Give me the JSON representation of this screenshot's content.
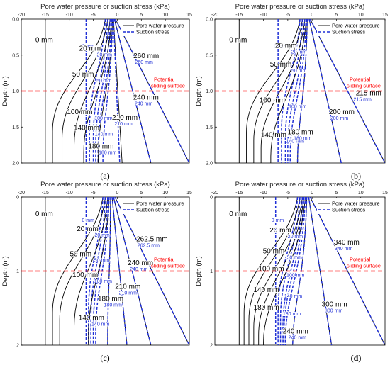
{
  "chart_data": [
    {
      "panel_label": "(a)",
      "type": "line",
      "title": "Pore water pressure or suction stress (kPa)",
      "xlabel": "Pore water pressure or suction stress (kPa)",
      "ylabel": "Depth (m)",
      "xlim": [
        -20,
        15
      ],
      "ylim": [
        0,
        2
      ],
      "xticks": [
        "-20",
        "-15",
        "-10",
        "-5",
        "0",
        "5",
        "10",
        "15"
      ],
      "yticks": [
        "0.0",
        "0.5",
        "1.0",
        "1.5",
        "2.0"
      ],
      "legend": [
        "Pore water pressure",
        "Suction stress"
      ],
      "legend_position": "top-right",
      "sliding_surface_depth": 1.0,
      "sliding_surface_label": "Potential sliding surface",
      "series": [
        {
          "pwp_label": "0 mm",
          "suc_label": "0 mm",
          "pwp_x": [
            -15,
            -15
          ],
          "suc_x": [
            -6.5,
            -6.5
          ]
        },
        {
          "pwp_label": "20 mm",
          "suc_label": "20 mm",
          "pwp_x": [
            -2.5,
            -13.5
          ],
          "suc_x": [
            -2.5,
            -5.8
          ]
        },
        {
          "pwp_label": "50 mm",
          "suc_label": "50 mm",
          "pwp_x": [
            -2,
            -11.5
          ],
          "suc_x": [
            -2,
            -5
          ]
        },
        {
          "pwp_label": "100 mm",
          "suc_label": "100 mm",
          "pwp_x": [
            -1.5,
            -9
          ],
          "suc_x": [
            -1.5,
            -4.5
          ]
        },
        {
          "pwp_label": "140 mm",
          "suc_label": "140 mm",
          "pwp_x": [
            -1.2,
            -7
          ],
          "suc_x": [
            -1.2,
            -4
          ]
        },
        {
          "pwp_label": "180 mm",
          "suc_label": "180 mm",
          "pwp_x": [
            -1,
            -4
          ],
          "suc_x": [
            -1,
            -3
          ]
        },
        {
          "pwp_label": "210 mm",
          "suc_label": "210 mm",
          "pwp_x": [
            -0.8,
            1
          ],
          "suc_x": [
            -0.8,
            0.5
          ]
        },
        {
          "pwp_label": "240 mm",
          "suc_label": "240 mm",
          "pwp_x": [
            -0.6,
            7
          ],
          "suc_x": [
            -0.6,
            7
          ]
        },
        {
          "pwp_label": "260 mm",
          "suc_label": "260 mm",
          "pwp_x": [
            -0.4,
            15
          ],
          "suc_x": [
            -0.4,
            15
          ]
        }
      ]
    },
    {
      "panel_label": "(b)",
      "type": "line",
      "title": "Pore water pressure or suction stress (kPa)",
      "xlabel": "Pore water pressure or suction stress (kPa)",
      "ylabel": "Depth (m)",
      "xlim": [
        -20,
        15
      ],
      "ylim": [
        0,
        2
      ],
      "xticks": [
        "-20",
        "-15",
        "-10",
        "-5",
        "0",
        "5",
        "10",
        "15"
      ],
      "yticks": [
        "0.0",
        "0.5",
        "1.0",
        "1.5",
        "2.0"
      ],
      "legend": [
        "Pore water pressure",
        "Suction stress"
      ],
      "legend_position": "top-right",
      "sliding_surface_depth": 1.0,
      "sliding_surface_label": "Potential sliding surface",
      "series": [
        {
          "pwp_label": "0 mm",
          "suc_label": "0 mm",
          "pwp_x": [
            -15,
            -15
          ],
          "suc_x": [
            -7,
            -7
          ]
        },
        {
          "pwp_label": "20 mm",
          "suc_label": "20 mm",
          "pwp_x": [
            -2.5,
            -13.5
          ],
          "suc_x": [
            -2.5,
            -6.3
          ]
        },
        {
          "pwp_label": "50 mm",
          "suc_label": "50 mm",
          "pwp_x": [
            -2,
            -12
          ],
          "suc_x": [
            -2,
            -5.5
          ]
        },
        {
          "pwp_label": "100 mm",
          "suc_label": "100 mm",
          "pwp_x": [
            -1.5,
            -10.5
          ],
          "suc_x": [
            -1.5,
            -5
          ]
        },
        {
          "pwp_label": "140 mm",
          "suc_label": "140 mm",
          "pwp_x": [
            -1.2,
            -8.5
          ],
          "suc_x": [
            -1.2,
            -4.5
          ]
        },
        {
          "pwp_label": "180 mm",
          "suc_label": "180 mm",
          "pwp_x": [
            -1,
            -3
          ],
          "suc_x": [
            -1,
            -3
          ]
        },
        {
          "pwp_label": "200 mm",
          "suc_label": "200 mm",
          "pwp_x": [
            -0.6,
            6
          ],
          "suc_x": [
            -0.6,
            6
          ]
        },
        {
          "pwp_label": "215 mm",
          "suc_label": "215 mm",
          "pwp_x": [
            -0.4,
            15
          ],
          "suc_x": [
            -0.4,
            15
          ]
        }
      ]
    },
    {
      "panel_label": "(c)",
      "type": "line",
      "title": "Pore water pressure or suction stress (kPa)",
      "xlabel": "Pore water pressure or suction stress (kPa)",
      "ylabel": "Depth (m)",
      "xlim": [
        -20,
        15
      ],
      "ylim": [
        0,
        2
      ],
      "xticks": [
        "-20",
        "-15",
        "-10",
        "-5",
        "0",
        "5",
        "10",
        "15"
      ],
      "yticks": [
        "0",
        "1",
        "2"
      ],
      "legend": [
        "Pore water pressure",
        "Suction stress"
      ],
      "legend_position": "top-right",
      "sliding_surface_depth": 1.0,
      "sliding_surface_label": "Potential sliding surface",
      "series": [
        {
          "pwp_label": "0 mm",
          "suc_label": "0 mm",
          "pwp_x": [
            -15,
            -15
          ],
          "suc_x": [
            -6.5,
            -6.5
          ]
        },
        {
          "pwp_label": "20 mm",
          "suc_label": "20 mm",
          "pwp_x": [
            -3,
            -13.5
          ],
          "suc_x": [
            -3,
            -6
          ]
        },
        {
          "pwp_label": "50 mm",
          "suc_label": "50 mm",
          "pwp_x": [
            -2.5,
            -12
          ],
          "suc_x": [
            -2.5,
            -5.5
          ]
        },
        {
          "pwp_label": "100 mm",
          "suc_label": "100 mm",
          "pwp_x": [
            -2,
            -9
          ],
          "suc_x": [
            -2,
            -5
          ]
        },
        {
          "pwp_label": "140 mm",
          "suc_label": "140 mm",
          "pwp_x": [
            -1.7,
            -6
          ],
          "suc_x": [
            -1.7,
            -4.5
          ]
        },
        {
          "pwp_label": "180 mm",
          "suc_label": "180 mm",
          "pwp_x": [
            -1.4,
            -2
          ],
          "suc_x": [
            -1.4,
            -2
          ]
        },
        {
          "pwp_label": "210 mm",
          "suc_label": "210 mm",
          "pwp_x": [
            -1.1,
            2
          ],
          "suc_x": [
            -1.1,
            2
          ]
        },
        {
          "pwp_label": "240 mm",
          "suc_label": "240 mm",
          "pwp_x": [
            -0.8,
            7
          ],
          "suc_x": [
            -0.8,
            7
          ]
        },
        {
          "pwp_label": "262.5 mm",
          "suc_label": "262.5 mm",
          "pwp_x": [
            -0.5,
            15
          ],
          "suc_x": [
            -0.5,
            15
          ]
        }
      ]
    },
    {
      "panel_label": "(d)",
      "type": "line",
      "title": "Pore water pressure or suction stress (kPa)",
      "xlabel": "Pore water pressure or suction stress (kPa)",
      "ylabel": "Depth (m)",
      "xlim": [
        -20,
        15
      ],
      "ylim": [
        0,
        2
      ],
      "xticks": [
        "-20",
        "-15",
        "-10",
        "-5",
        "0",
        "5",
        "10",
        "15"
      ],
      "yticks": [
        "0",
        "1",
        "2"
      ],
      "legend": [
        "Pore water pressure",
        "Suction stress"
      ],
      "legend_position": "top-right",
      "sliding_surface_depth": 1.0,
      "sliding_surface_label": "Potential sliding surface",
      "series": [
        {
          "pwp_label": "0 mm",
          "suc_label": "0 mm",
          "pwp_x": [
            -15,
            -15
          ],
          "suc_x": [
            -7.5,
            -7.5
          ]
        },
        {
          "pwp_label": "20 mm",
          "suc_label": "20 mm",
          "pwp_x": [
            -3,
            -14
          ],
          "suc_x": [
            -3,
            -7
          ]
        },
        {
          "pwp_label": "50 mm",
          "suc_label": "50 mm",
          "pwp_x": [
            -2.5,
            -13
          ],
          "suc_x": [
            -2.5,
            -6.5
          ]
        },
        {
          "pwp_label": "100 mm",
          "suc_label": "100 mm",
          "pwp_x": [
            -2,
            -12
          ],
          "suc_x": [
            -2,
            -6
          ]
        },
        {
          "pwp_label": "140 mm",
          "suc_label": "140 mm",
          "pwp_x": [
            -1.7,
            -11
          ],
          "suc_x": [
            -1.7,
            -5.8
          ]
        },
        {
          "pwp_label": "180 mm",
          "suc_label": "180 mm",
          "pwp_x": [
            -1.4,
            -10
          ],
          "suc_x": [
            -1.4,
            -5.5
          ]
        },
        {
          "pwp_label": "240 mm",
          "suc_label": "240 mm",
          "pwp_x": [
            -1.1,
            -4
          ],
          "suc_x": [
            -1.1,
            -4
          ]
        },
        {
          "pwp_label": "300 mm",
          "suc_label": "300 mm",
          "pwp_x": [
            -0.7,
            4
          ],
          "suc_x": [
            -0.7,
            4
          ]
        },
        {
          "pwp_label": "340 mm",
          "suc_label": "340 mm",
          "pwp_x": [
            -0.4,
            15
          ],
          "suc_x": [
            -0.4,
            15
          ]
        }
      ]
    }
  ],
  "colors": {
    "pore": "#000000",
    "suction": "#1f2fd6",
    "sliding": "#ff0000"
  }
}
